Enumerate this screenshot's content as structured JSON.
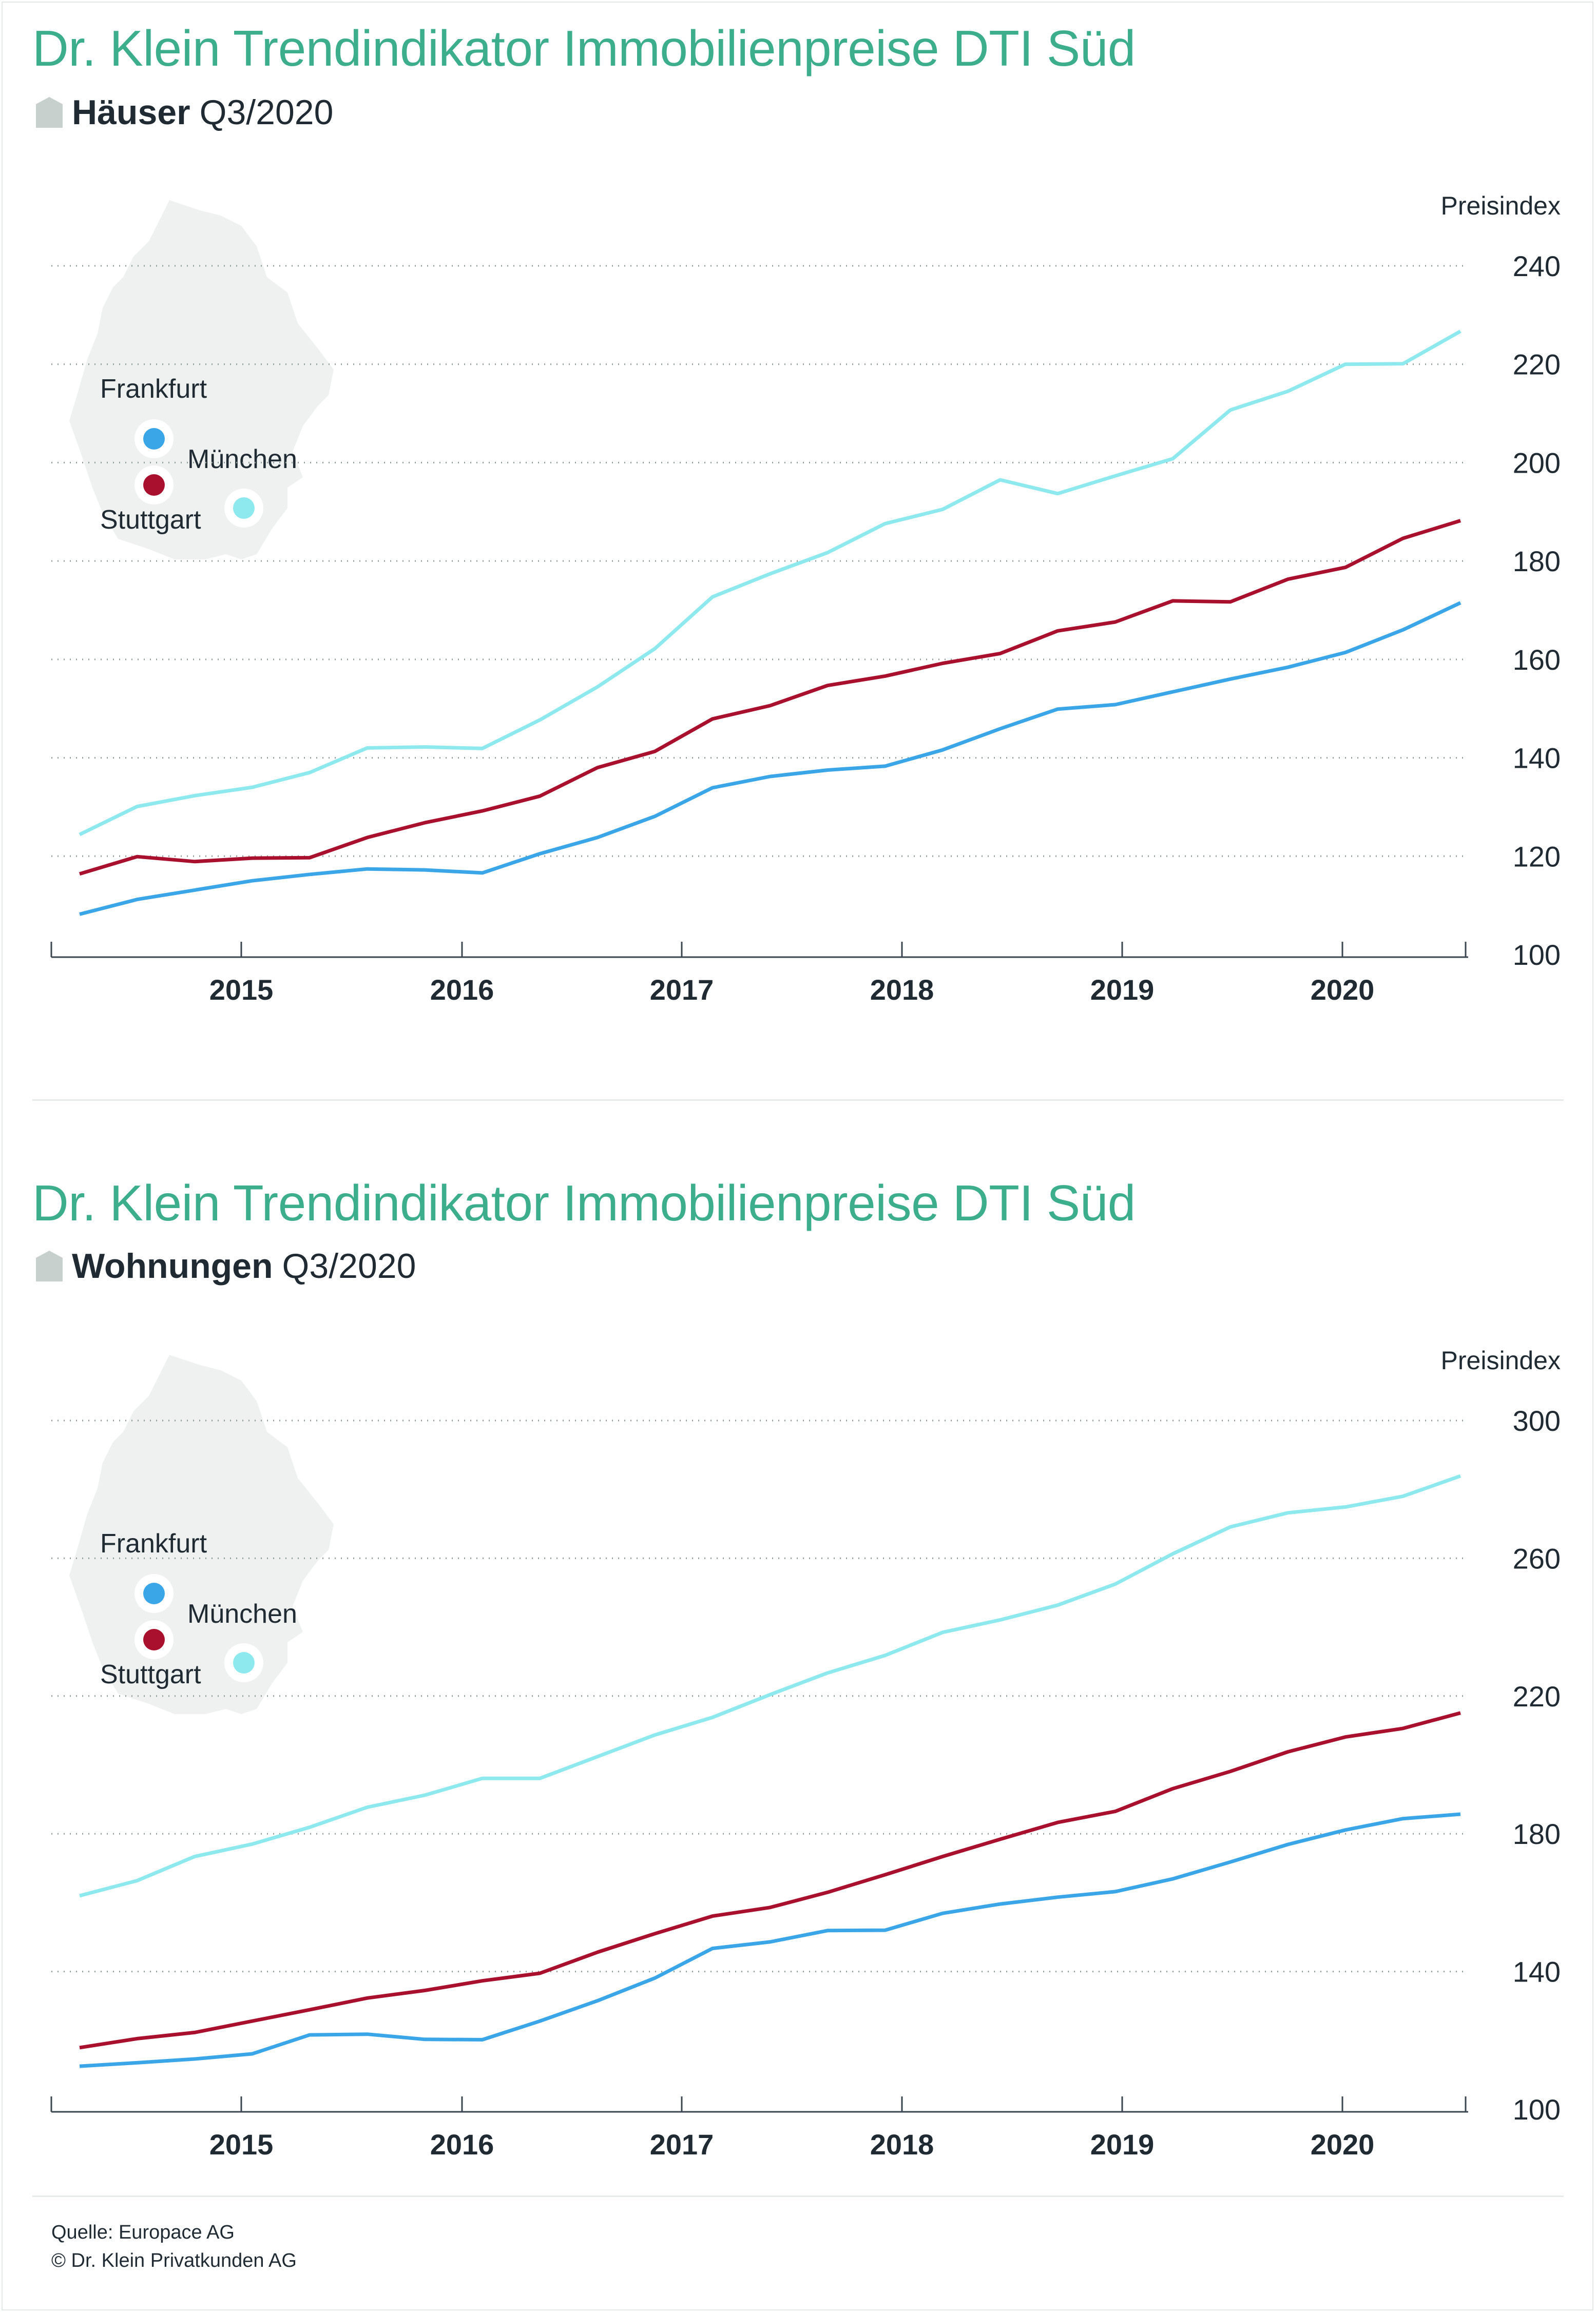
{
  "charts": [
    {
      "title": "Dr. Klein Trendindikator Immobilienpreise DTI Süd",
      "subtitle_bold": "Häuser",
      "subtitle_rest": "Q3/2020"
    },
    {
      "title": "Dr. Klein Trendindikator Immobilienpreise DTI Süd",
      "subtitle_bold": "Wohnungen",
      "subtitle_rest": "Q3/2020"
    }
  ],
  "map_labels": {
    "frankfurt": "Frankfurt",
    "muenchen": "München",
    "stuttgart": "Stuttgart"
  },
  "source": {
    "line1": "Quelle: Europace AG",
    "line2": "© Dr. Klein Privatkunden AG"
  },
  "colors": {
    "frankfurt": "#3aa6e8",
    "muenchen": "#a8102d",
    "stuttgart": "#8ee9ee",
    "title": "#3cae8c"
  },
  "chart_data": [
    {
      "type": "line",
      "title": "Dr. Klein Trendindikator Immobilienpreise DTI Süd",
      "subtitle": "Häuser Q3/2020",
      "ylabel": "Preisindex",
      "ylim": [
        100,
        240
      ],
      "yticks": [
        100,
        120,
        140,
        160,
        180,
        200,
        220,
        240
      ],
      "x_tick_labels": [
        "2015",
        "2016",
        "2017",
        "2018",
        "2019",
        "2020"
      ],
      "x": [
        "Q2/2014",
        "Q3/2014",
        "Q4/2014",
        "Q1/2015",
        "Q2/2015",
        "Q3/2015",
        "Q4/2015",
        "Q1/2016",
        "Q2/2016",
        "Q3/2016",
        "Q4/2016",
        "Q1/2017",
        "Q2/2017",
        "Q3/2017",
        "Q4/2017",
        "Q1/2018",
        "Q2/2018",
        "Q3/2018",
        "Q4/2018",
        "Q1/2019",
        "Q2/2019",
        "Q3/2019",
        "Q4/2019",
        "Q1/2020",
        "Q2/2020",
        "Q3/2020"
      ],
      "grid": true,
      "series": [
        {
          "name": "Frankfurt",
          "color": "#3aa6e8",
          "values": [
            108.2,
            111.2,
            113.1,
            115.0,
            116.3,
            117.4,
            117.2,
            116.6,
            120.5,
            123.8,
            128.1,
            133.9,
            136.2,
            137.5,
            138.3,
            141.6,
            145.9,
            149.9,
            150.8,
            153.4,
            156.0,
            158.4,
            161.4,
            166.0,
            171.5,
            171.5
          ]
        },
        {
          "name": "München",
          "color": "#a8102d",
          "values": [
            116.4,
            119.9,
            118.9,
            119.6,
            119.7,
            123.8,
            126.8,
            129.2,
            132.2,
            138.0,
            141.3,
            147.9,
            150.6,
            154.7,
            156.6,
            159.2,
            161.2,
            165.8,
            167.6,
            171.9,
            171.7,
            176.3,
            178.7,
            184.6,
            188.2,
            188.2
          ]
        },
        {
          "name": "Stuttgart",
          "color": "#8ee9ee",
          "values": [
            124.4,
            130.1,
            132.3,
            134.0,
            137.0,
            142.0,
            142.2,
            141.9,
            147.7,
            154.4,
            162.2,
            172.7,
            177.4,
            181.7,
            187.6,
            190.5,
            196.5,
            193.7,
            197.3,
            200.8,
            210.7,
            214.5,
            220.0,
            220.1,
            226.7,
            226.7
          ]
        }
      ]
    },
    {
      "type": "line",
      "title": "Dr. Klein Trendindikator Immobilienpreise DTI Süd",
      "subtitle": "Wohnungen Q3/2020",
      "ylabel": "Preisindex",
      "ylim": [
        100,
        300
      ],
      "yticks": [
        100,
        140,
        180,
        220,
        260,
        300
      ],
      "x_tick_labels": [
        "2015",
        "2016",
        "2017",
        "2018",
        "2019",
        "2020"
      ],
      "x": [
        "Q2/2014",
        "Q3/2014",
        "Q4/2014",
        "Q1/2015",
        "Q2/2015",
        "Q3/2015",
        "Q4/2015",
        "Q1/2016",
        "Q2/2016",
        "Q3/2016",
        "Q4/2016",
        "Q1/2017",
        "Q2/2017",
        "Q3/2017",
        "Q4/2017",
        "Q1/2018",
        "Q2/2018",
        "Q3/2018",
        "Q4/2018",
        "Q1/2019",
        "Q2/2019",
        "Q3/2019",
        "Q4/2019",
        "Q1/2020",
        "Q2/2020",
        "Q3/2020"
      ],
      "grid": true,
      "series": [
        {
          "name": "Frankfurt",
          "color": "#3aa6e8",
          "values": [
            112.5,
            113.5,
            114.6,
            116.1,
            121.6,
            121.8,
            120.3,
            120.2,
            125.6,
            131.5,
            138.1,
            146.7,
            148.6,
            151.9,
            152.0,
            156.9,
            159.6,
            161.6,
            163.2,
            166.9,
            171.8,
            176.9,
            181.1,
            184.4,
            185.7,
            185.7
          ]
        },
        {
          "name": "München",
          "color": "#a8102d",
          "values": [
            117.9,
            120.5,
            122.3,
            125.6,
            128.9,
            132.3,
            134.5,
            137.3,
            139.5,
            145.6,
            151.0,
            156.1,
            158.6,
            163.0,
            168.1,
            173.4,
            178.4,
            183.3,
            186.5,
            193.1,
            198.1,
            203.8,
            208.1,
            210.6,
            215.1,
            215.1
          ]
        },
        {
          "name": "Stuttgart",
          "color": "#8ee9ee",
          "values": [
            162.0,
            166.4,
            173.4,
            177.0,
            181.9,
            187.7,
            191.2,
            196.1,
            196.1,
            202.4,
            208.7,
            213.8,
            220.4,
            226.7,
            231.8,
            238.5,
            242.1,
            246.4,
            252.5,
            261.3,
            269.1,
            273.2,
            274.9,
            278.0,
            283.9,
            283.9
          ]
        }
      ]
    }
  ]
}
